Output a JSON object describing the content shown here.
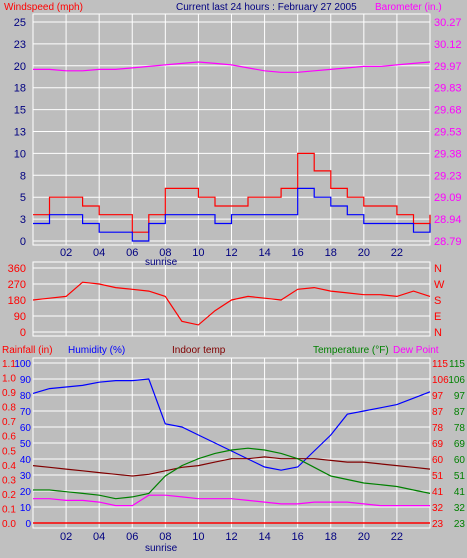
{
  "colors": {
    "background": "#c0c0c0",
    "plot_bg": "#bdbdbd",
    "grid": "#ffffff",
    "wind_gust": "#ff0000",
    "wind_avg": "#0000ff",
    "barometer": "#ff00ff",
    "direction": "#ff0000",
    "humidity": "#0000ff",
    "indoor_temp": "#800000",
    "temperature": "#008000",
    "dew_point": "#ff00ff",
    "rainfall": "#ff0000"
  },
  "header": {
    "left_label": "Windspeed (mph)",
    "title": "Current last 24 hours : February 27 2005",
    "right_label": "Barometer (in.)"
  },
  "panel3_labels": {
    "rainfall": "Rainfall (in)",
    "humidity": "Humidity (%)",
    "indoor": "Indoor temp",
    "temperature": "Temperature (°F)",
    "dewpoint": "Dew Point"
  },
  "x_ticks": [
    "02",
    "04",
    "06",
    "08",
    "10",
    "12",
    "14",
    "16",
    "18",
    "20",
    "22"
  ],
  "sunrise_label": "sunrise",
  "chart_data": [
    {
      "type": "line",
      "title": "Current last 24 hours : February 27 2005",
      "x_hours": [
        0,
        1,
        2,
        3,
        4,
        5,
        6,
        7,
        8,
        9,
        10,
        11,
        12,
        13,
        14,
        15,
        16,
        17,
        18,
        19,
        20,
        21,
        22,
        23,
        24
      ],
      "y_left_label": "Windspeed (mph)",
      "y_left_ticks": [
        "25",
        "23",
        "20",
        "18",
        "15",
        "13",
        "10",
        "8",
        "5",
        "3",
        "0"
      ],
      "y_left_range": [
        0,
        25
      ],
      "y_right_label": "Barometer (in.)",
      "y_right_ticks": [
        "30.27",
        "30.12",
        "29.97",
        "29.83",
        "29.68",
        "29.53",
        "29.38",
        "29.23",
        "29.09",
        "28.94",
        "28.79"
      ],
      "y_right_range": [
        28.79,
        30.27
      ],
      "series": [
        {
          "name": "Windspeed (mph)",
          "role": "gust",
          "values": [
            3,
            5,
            5,
            4,
            3,
            3,
            1,
            3,
            6,
            6,
            5,
            4,
            4,
            5,
            5,
            6,
            10,
            8,
            6,
            5,
            4,
            4,
            3,
            2,
            3
          ]
        },
        {
          "name": "Windspeed (mph)",
          "role": "average",
          "values": [
            2,
            3,
            3,
            2,
            1,
            1,
            0,
            2,
            3,
            3,
            3,
            2,
            3,
            3,
            3,
            3,
            6,
            5,
            4,
            3,
            2,
            2,
            2,
            1,
            2
          ]
        },
        {
          "name": "Barometer (in.)",
          "values": [
            29.95,
            29.95,
            29.94,
            29.94,
            29.95,
            29.95,
            29.96,
            29.97,
            29.98,
            29.99,
            30.0,
            29.99,
            29.98,
            29.96,
            29.94,
            29.93,
            29.93,
            29.94,
            29.95,
            29.96,
            29.97,
            29.97,
            29.98,
            29.99,
            30.0
          ]
        }
      ]
    },
    {
      "type": "line",
      "x_hours": [
        0,
        1,
        2,
        3,
        4,
        5,
        6,
        7,
        8,
        9,
        10,
        11,
        12,
        13,
        14,
        15,
        16,
        17,
        18,
        19,
        20,
        21,
        22,
        23,
        24
      ],
      "y_left_ticks": [
        "360",
        "270",
        "180",
        "90",
        "0"
      ],
      "y_left_range": [
        0,
        360
      ],
      "y_right_ticks": [
        "N",
        "W",
        "S",
        "E",
        "N"
      ],
      "series": [
        {
          "name": "Wind direction",
          "values": [
            180,
            190,
            200,
            280,
            270,
            250,
            240,
            230,
            200,
            60,
            40,
            120,
            180,
            200,
            190,
            180,
            240,
            250,
            230,
            220,
            210,
            210,
            200,
            230,
            200
          ]
        }
      ]
    },
    {
      "type": "line",
      "x_hours": [
        0,
        1,
        2,
        3,
        4,
        5,
        6,
        7,
        8,
        9,
        10,
        11,
        12,
        13,
        14,
        15,
        16,
        17,
        18,
        19,
        20,
        21,
        22,
        23,
        24
      ],
      "y_humidity_label": "Humidity (%)",
      "y_humidity_ticks": [
        "100",
        "90",
        "80",
        "70",
        "60",
        "50",
        "40",
        "30",
        "20",
        "10",
        "0"
      ],
      "y_humidity_range": [
        0,
        100
      ],
      "y_rain_label": "Rainfall (in)",
      "y_rain_ticks": [
        "1.1",
        "1.0",
        "0.9",
        "0.8",
        "0.7",
        "0.6",
        "0.5",
        "0.4",
        "0.3",
        "0.2",
        "0.1",
        "0.0"
      ],
      "y_temp_label": "Temperature (°F)",
      "y_temp_ticks_a": [
        "115",
        "106",
        "97",
        "87",
        "78",
        "69",
        "60",
        "51",
        "41",
        "32",
        "23"
      ],
      "y_temp_ticks_b": [
        "115",
        "106",
        "97",
        "87",
        "78",
        "69",
        "60",
        "51",
        "41",
        "32",
        "23"
      ],
      "y_temp_range": [
        23,
        115
      ],
      "series": [
        {
          "name": "Humidity (%)",
          "values": [
            81,
            84,
            85,
            86,
            88,
            89,
            89,
            90,
            62,
            60,
            55,
            50,
            45,
            40,
            35,
            33,
            35,
            45,
            55,
            68,
            70,
            72,
            74,
            78,
            82
          ]
        },
        {
          "name": "Indoor temp",
          "values": [
            56,
            55,
            54,
            53,
            52,
            51,
            50,
            51,
            53,
            55,
            56,
            58,
            60,
            60,
            61,
            60,
            60,
            60,
            59,
            58,
            58,
            57,
            56,
            55,
            54
          ]
        },
        {
          "name": "Temperature (°F)",
          "values": [
            42,
            42,
            41,
            40,
            39,
            37,
            38,
            40,
            50,
            56,
            60,
            63,
            65,
            66,
            65,
            63,
            60,
            55,
            50,
            48,
            46,
            45,
            44,
            42,
            40
          ]
        },
        {
          "name": "Dew Point",
          "values": [
            37,
            37,
            36,
            36,
            35,
            33,
            33,
            39,
            39,
            38,
            37,
            37,
            37,
            36,
            35,
            34,
            34,
            35,
            35,
            35,
            34,
            33,
            33,
            33,
            33
          ]
        },
        {
          "name": "Rainfall (in)",
          "values": [
            0,
            0,
            0,
            0,
            0,
            0,
            0,
            0,
            0,
            0,
            0,
            0,
            0,
            0,
            0,
            0,
            0,
            0,
            0,
            0,
            0,
            0,
            0,
            0,
            0
          ]
        }
      ]
    }
  ]
}
